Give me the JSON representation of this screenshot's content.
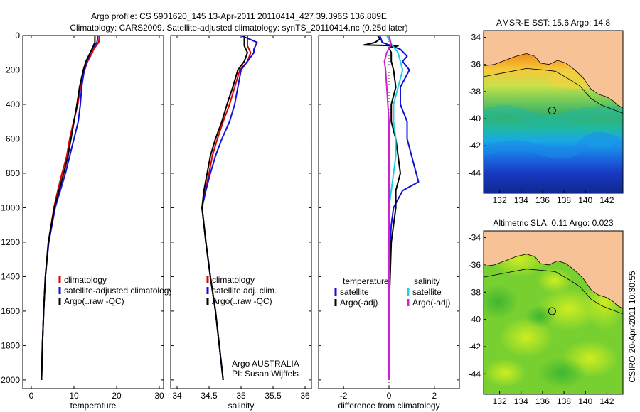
{
  "header": {
    "line1": "Argo profile: CS 5901620_145 13-Apr-2011 20110414_427 39.396S 136.889E",
    "line2": "Climatology: CARS2009. Satellite-adjusted climatology: synTS_20110414.nc (0.25d later)"
  },
  "colors": {
    "climatology": "#e00000",
    "satellite": "#1010d8",
    "argo": "#000000",
    "argo_adj": "#d020d0",
    "satellite_sal": "#20d0e0",
    "land": "#f7c396"
  },
  "side_text": "CSIRO 20-Apr-2011 10:30:55",
  "credit": {
    "line1": "Argo AUSTRALIA",
    "line2": "PI: Susan Wijffels"
  },
  "chart_data": [
    {
      "type": "line",
      "xlabel": "temperature",
      "xlim": [
        -2,
        31
      ],
      "ylim": [
        2050,
        0
      ],
      "xticks": [
        0,
        10,
        20,
        30
      ],
      "yticks": [
        0,
        200,
        400,
        600,
        800,
        1000,
        1200,
        1400,
        1600,
        1800,
        2000
      ],
      "legend": [
        "climatology",
        "satellite-adjusted climatology",
        "Argo(..raw -QC)"
      ],
      "series": [
        {
          "name": "climatology",
          "color_key": "climatology",
          "depth": [
            0,
            40,
            80,
            100,
            150,
            200,
            300,
            400,
            500,
            600,
            700,
            800,
            900,
            1000,
            1200,
            1400,
            1600,
            1800,
            2000
          ],
          "values": [
            16.0,
            15.8,
            14.6,
            14.3,
            13.2,
            12.5,
            11.5,
            10.9,
            9.9,
            9.0,
            8.3,
            7.2,
            6.2,
            5.3,
            4.0,
            3.3,
            2.9,
            2.6,
            2.4
          ]
        },
        {
          "name": "satellite-adjusted climatology",
          "color_key": "satellite",
          "depth": [
            0,
            40,
            80,
            100,
            150,
            200,
            300,
            400,
            500,
            600,
            700,
            800,
            900,
            1000,
            1200,
            1400,
            1600,
            1800,
            2000
          ],
          "values": [
            15.6,
            15.4,
            14.2,
            13.9,
            13.0,
            12.4,
            11.8,
            11.5,
            11.0,
            10.0,
            9.0,
            8.0,
            6.8,
            5.6,
            4.1,
            3.3,
            2.9,
            2.6,
            2.4
          ]
        },
        {
          "name": "Argo(..raw -QC)",
          "color_key": "argo",
          "depth": [
            0,
            40,
            80,
            100,
            150,
            200,
            300,
            400,
            500,
            600,
            700,
            800,
            900,
            1000,
            1200,
            1400,
            1600,
            1800,
            2000
          ],
          "values": [
            14.9,
            14.9,
            14.2,
            13.8,
            12.8,
            12.2,
            11.3,
            10.7,
            10.0,
            9.3,
            8.6,
            7.6,
            6.5,
            5.4,
            4.0,
            3.3,
            2.9,
            2.6,
            2.4
          ]
        }
      ]
    },
    {
      "type": "line",
      "xlabel": "salinity",
      "xlim": [
        33.9,
        36.1
      ],
      "ylim": [
        2050,
        0
      ],
      "xticks": [
        34,
        34.5,
        35,
        35.5,
        36
      ],
      "legend": [
        "climatology",
        "satellite adj. clim.",
        "Argo(..raw -QC)"
      ],
      "series": [
        {
          "name": "climatology",
          "color_key": "climatology",
          "depth": [
            0,
            60,
            100,
            150,
            200,
            300,
            400,
            500,
            600,
            700,
            800,
            900,
            1000,
            1200,
            1400,
            1600,
            1800,
            2000
          ],
          "values": [
            35.1,
            35.1,
            35.15,
            35.1,
            34.98,
            34.9,
            34.82,
            34.72,
            34.63,
            34.55,
            34.5,
            34.44,
            34.39,
            34.45,
            34.52,
            34.6,
            34.66,
            34.72
          ]
        },
        {
          "name": "satellite adj. clim.",
          "color_key": "satellite",
          "depth": [
            0,
            40,
            80,
            100,
            150,
            200,
            300,
            400,
            500,
            600,
            700,
            800,
            900,
            1000,
            1200,
            1400,
            1600,
            1800,
            2000
          ],
          "values": [
            35.0,
            35.25,
            35.2,
            35.2,
            35.1,
            35.0,
            34.95,
            34.9,
            34.82,
            34.7,
            34.6,
            34.52,
            34.45,
            34.39,
            34.45,
            34.52,
            34.6,
            34.66,
            34.72
          ]
        },
        {
          "name": "Argo(..raw -QC)",
          "color_key": "argo",
          "depth": [
            0,
            60,
            100,
            150,
            200,
            300,
            400,
            500,
            600,
            700,
            800,
            900,
            1000,
            1200,
            1400,
            1600,
            1800,
            2000
          ],
          "values": [
            35.05,
            35.05,
            35.1,
            35.05,
            34.95,
            34.87,
            34.78,
            34.7,
            34.6,
            34.52,
            34.47,
            34.42,
            34.39,
            34.45,
            34.52,
            34.6,
            34.66,
            34.72
          ]
        }
      ]
    },
    {
      "type": "line",
      "xlabel": "difference from climatology",
      "xlim": [
        -3.1,
        3.1
      ],
      "ylim": [
        2050,
        0
      ],
      "xticks": [
        -2,
        0,
        2
      ],
      "legend_left_title": "temperature",
      "legend_right_title": "salinity",
      "legend_left": [
        "satellite",
        "Argo(-adj)"
      ],
      "legend_right": [
        "satellite",
        "Argo(-adj)"
      ],
      "series": [
        {
          "name": "satellite",
          "group": "temperature",
          "color_key": "satellite",
          "depth": [
            0,
            40,
            80,
            120,
            150,
            200,
            300,
            400,
            500,
            600,
            700,
            800,
            850,
            900,
            1000,
            1100,
            1200,
            1400,
            1600,
            1800,
            2000
          ],
          "values": [
            -0.4,
            -0.3,
            0.5,
            0.8,
            0.6,
            0.9,
            0.5,
            0.5,
            0.8,
            0.8,
            1.0,
            1.2,
            1.3,
            0.6,
            0.2,
            0.1,
            0.05,
            0.0,
            0.0,
            0.0,
            0.0
          ]
        },
        {
          "name": "Argo(-adj)",
          "group": "temperature",
          "color_key": "argo",
          "depth": [
            0,
            20,
            40,
            55,
            60,
            70,
            100,
            150,
            200,
            300,
            400,
            500,
            600,
            700,
            800,
            900,
            1000,
            1100,
            1200,
            1400,
            1600,
            1800,
            2000
          ],
          "values": [
            -0.5,
            -0.4,
            -0.6,
            -1.1,
            0.4,
            0.0,
            0.1,
            0.1,
            0.2,
            0.3,
            0.1,
            0.1,
            0.3,
            0.4,
            0.5,
            0.3,
            0.3,
            0.2,
            0.1,
            0.05,
            0.0,
            0.0,
            0.0
          ]
        },
        {
          "name": "satellite",
          "group": "salinity",
          "color_key": "satellite_sal",
          "depth": [
            0,
            50,
            100,
            150,
            200,
            300,
            400,
            500,
            600,
            700,
            800,
            900,
            1000,
            1200,
            1400,
            1600,
            1800,
            2000
          ],
          "values": [
            -0.1,
            0.1,
            0.4,
            0.5,
            0.6,
            0.4,
            0.2,
            0.2,
            0.3,
            0.3,
            0.2,
            0.1,
            0.0,
            0.0,
            0.0,
            0.0,
            0.0,
            0.0
          ]
        },
        {
          "name": "Argo(-adj)",
          "group": "salinity",
          "color_key": "argo_adj",
          "depth": [
            0,
            50,
            100,
            150,
            200,
            300,
            400,
            500,
            600,
            700,
            800,
            900,
            1000,
            1200,
            1400,
            1600,
            1800,
            2000
          ],
          "values": [
            0.0,
            0.1,
            -0.1,
            -0.2,
            -0.15,
            -0.1,
            -0.05,
            0.0,
            0.0,
            0.0,
            0.0,
            0.0,
            0.0,
            0.0,
            0.0,
            0.0,
            0.0,
            0.0
          ]
        }
      ]
    },
    {
      "type": "heatmap",
      "title": "AMSR-E SST: 15.6 Argo: 14.8",
      "xlim": [
        130.5,
        143.5
      ],
      "ylim": [
        -45.5,
        -33.5
      ],
      "xticks": [
        132,
        134,
        136,
        138,
        140,
        142
      ],
      "yticks": [
        -34,
        -36,
        -38,
        -40,
        -42,
        -44
      ],
      "marker": {
        "lon": 136.889,
        "lat": -39.396
      }
    },
    {
      "type": "heatmap",
      "title": "Altimetric SLA: 0.11 Argo: 0.023",
      "xlim": [
        130.5,
        143.5
      ],
      "ylim": [
        -45.5,
        -33.5
      ],
      "xticks": [
        132,
        134,
        136,
        138,
        140,
        142
      ],
      "yticks": [
        -34,
        -36,
        -38,
        -40,
        -42,
        -44
      ],
      "marker": {
        "lon": 136.889,
        "lat": -39.396
      }
    }
  ]
}
